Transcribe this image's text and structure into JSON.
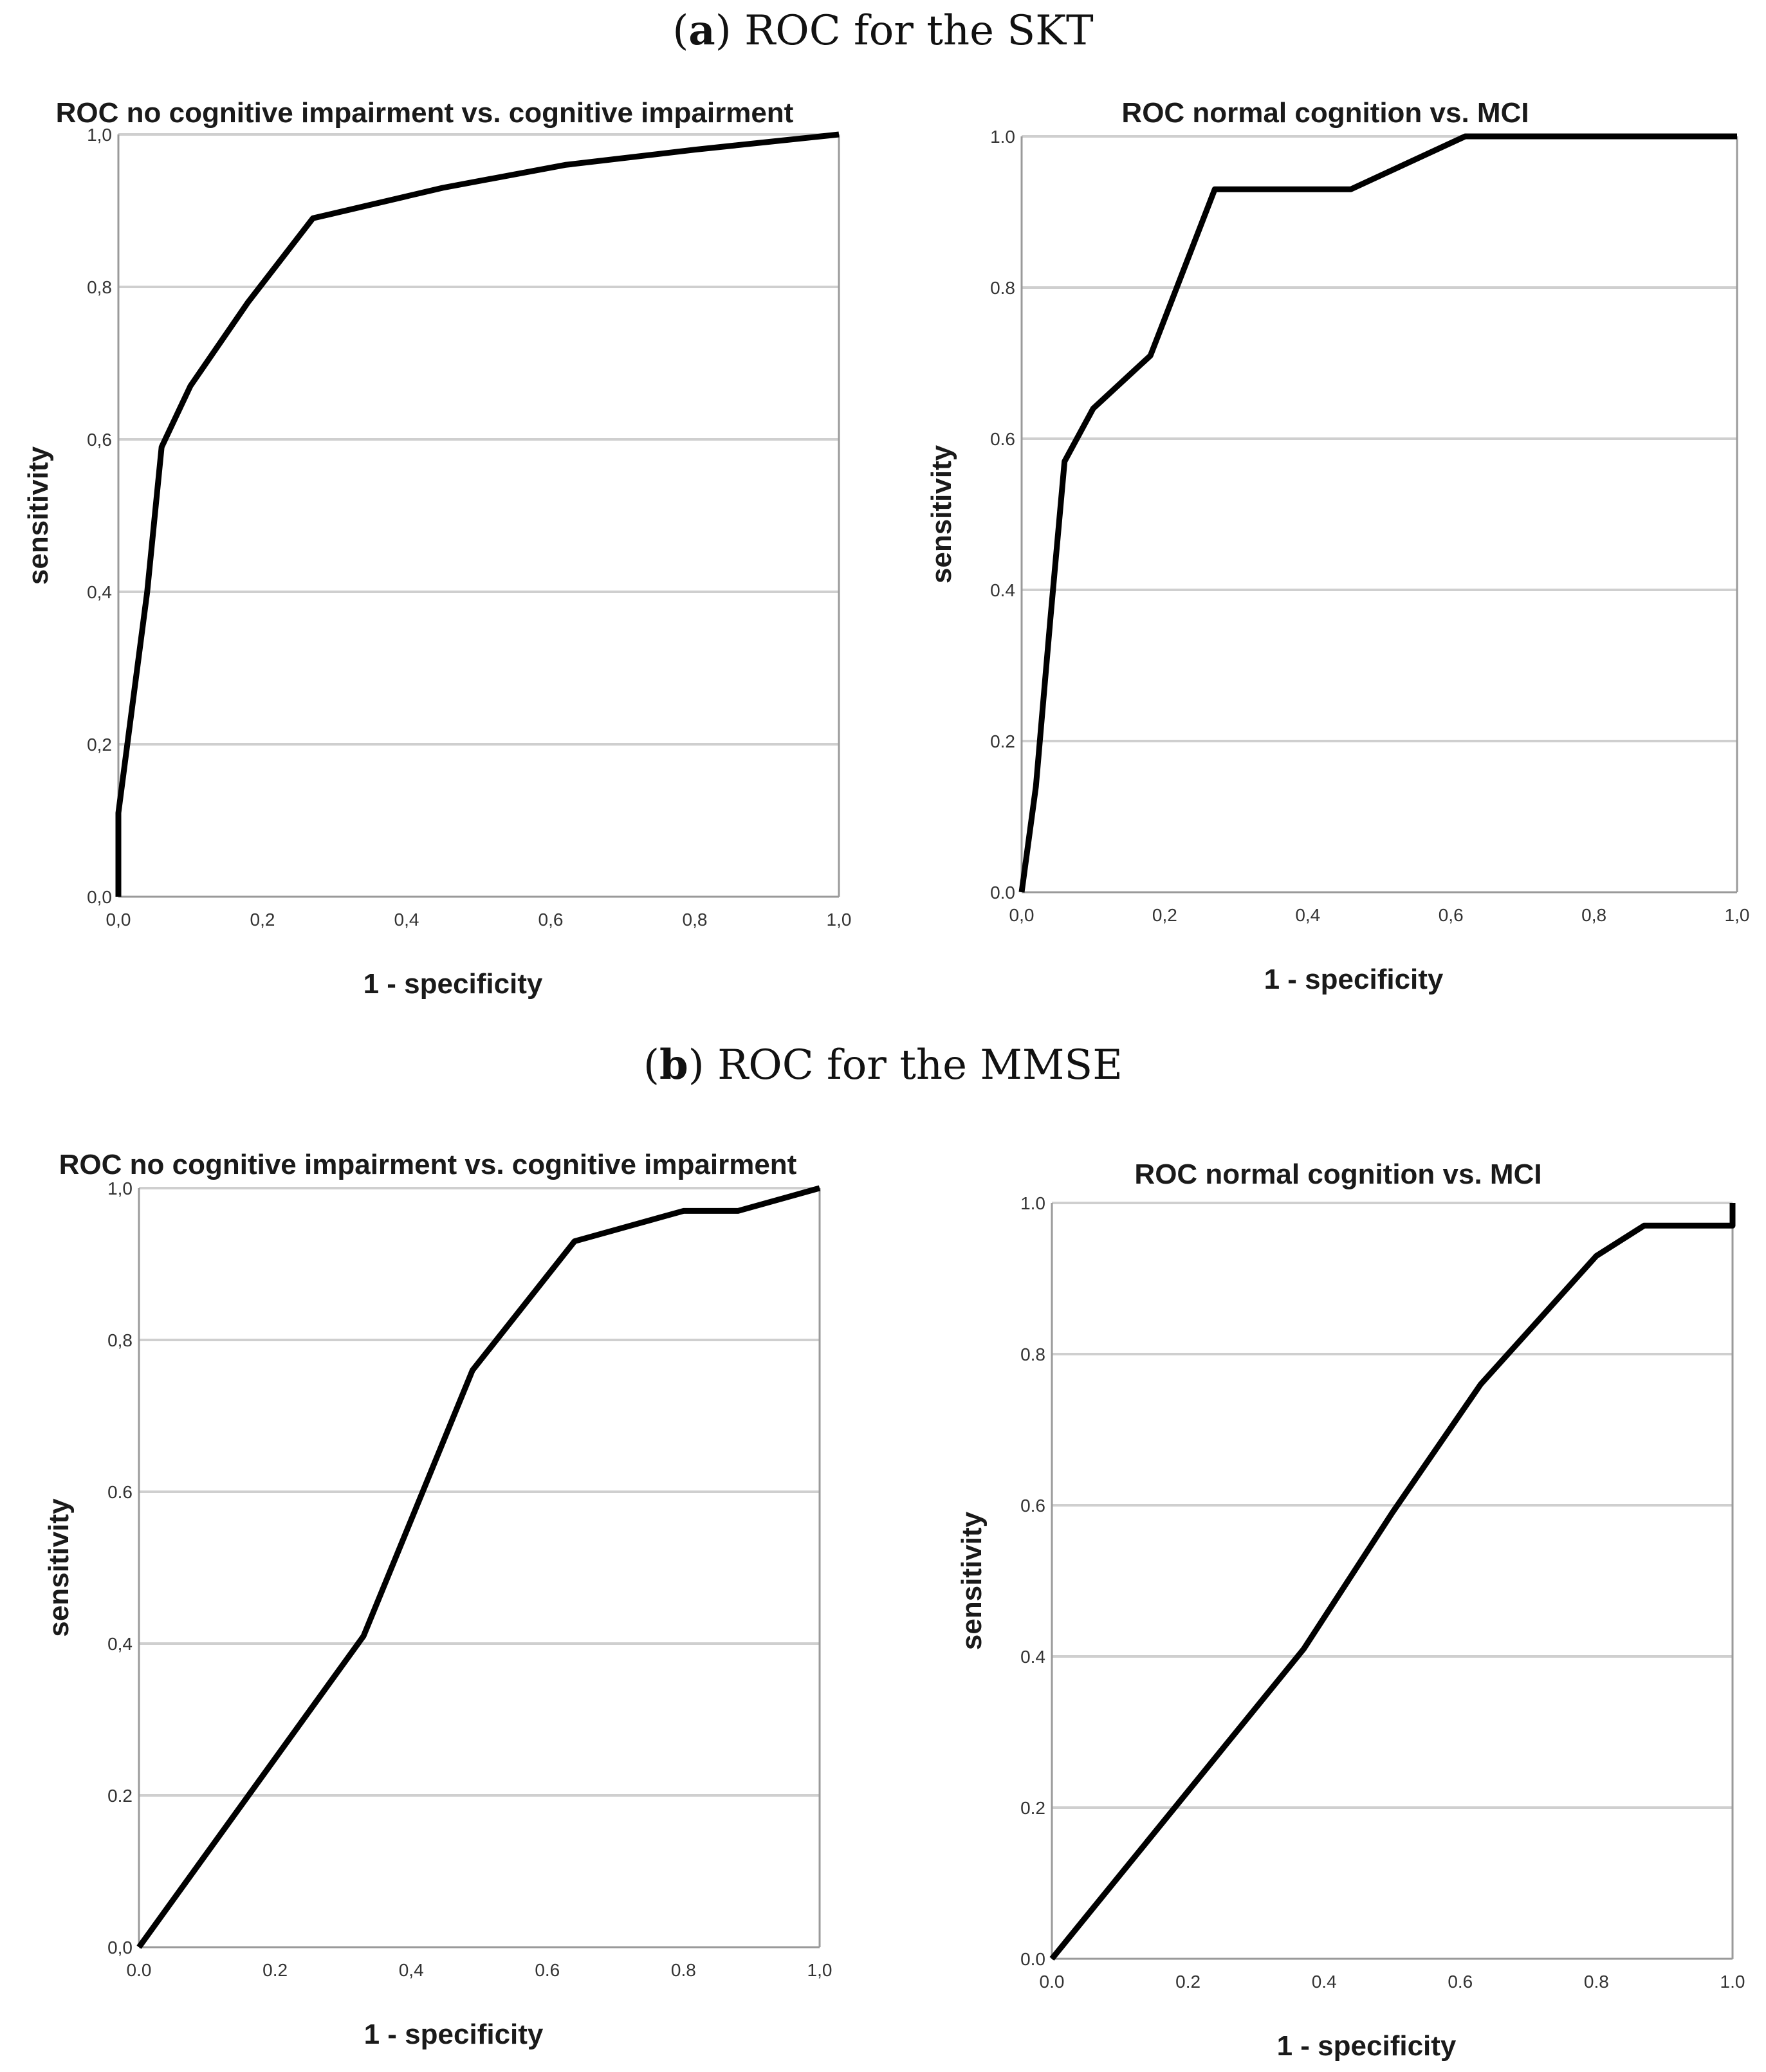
{
  "captions": [
    {
      "letter": "a",
      "text": ") ROC for the SKT"
    },
    {
      "letter": "b",
      "text": ") ROC for the MMSE"
    }
  ],
  "chart_data": [
    {
      "type": "line",
      "title": "ROC no cognitive impairment vs. cognitive impairment",
      "xlabel": "1 - specificity",
      "ylabel": "sensitivity",
      "xlim": [
        0,
        1
      ],
      "ylim": [
        0,
        1
      ],
      "xticks": [
        "0,0",
        "0,2",
        "0,4",
        "0,6",
        "0,8",
        "1,0"
      ],
      "yticks": [
        "0,0",
        "0,2",
        "0,4",
        "0,6",
        "0,8",
        "1,0"
      ],
      "grid": "horizontal",
      "series": [
        {
          "name": "ROC",
          "x": [
            0,
            0,
            0.04,
            0.06,
            0.1,
            0.18,
            0.27,
            0.45,
            0.62,
            0.8,
            1.0
          ],
          "y": [
            0,
            0.11,
            0.4,
            0.59,
            0.67,
            0.78,
            0.89,
            0.93,
            0.96,
            0.98,
            1.0
          ]
        }
      ]
    },
    {
      "type": "line",
      "title": "ROC normal cognition vs. MCI",
      "xlabel": "1 - specificity",
      "ylabel": "sensitivity",
      "xlim": [
        0,
        1
      ],
      "ylim": [
        0,
        1
      ],
      "xticks": [
        "0,0",
        "0,2",
        "0,4",
        "0,6",
        "0,8",
        "1,0"
      ],
      "yticks": [
        "0.0",
        "0.2",
        "0.4",
        "0.6",
        "0.8",
        "1.0"
      ],
      "grid": "horizontal",
      "series": [
        {
          "name": "ROC",
          "x": [
            0,
            0.02,
            0.04,
            0.06,
            0.1,
            0.18,
            0.27,
            0.46,
            0.62,
            1.0
          ],
          "y": [
            0,
            0.14,
            0.36,
            0.57,
            0.64,
            0.71,
            0.93,
            0.93,
            1.0,
            1.0
          ]
        }
      ]
    },
    {
      "type": "line",
      "title": "ROC no cognitive impairment vs. cognitive impairment",
      "xlabel": "1 - specificity",
      "ylabel": "sensitivity",
      "xlim": [
        0,
        1
      ],
      "ylim": [
        0,
        1
      ],
      "xticks": [
        "0.0",
        "0.2",
        "0,4",
        "0.6",
        "0.8",
        "1,0"
      ],
      "yticks": [
        "0,0",
        "0.2",
        "0,4",
        "0.6",
        "0,8",
        "1,0"
      ],
      "grid": "horizontal",
      "series": [
        {
          "name": "ROC",
          "x": [
            0,
            0.33,
            0.49,
            0.64,
            0.8,
            0.88,
            0.96,
            1.0
          ],
          "y": [
            0,
            0.41,
            0.76,
            0.93,
            0.97,
            0.97,
            0.99,
            1.0
          ]
        }
      ]
    },
    {
      "type": "line",
      "title": "ROC normal cognition vs. MCI",
      "xlabel": "1 - specificity",
      "ylabel": "sensitivity",
      "xlim": [
        0,
        1
      ],
      "ylim": [
        0,
        1
      ],
      "xticks": [
        "0.0",
        "0.2",
        "0.4",
        "0.6",
        "0.8",
        "1.0"
      ],
      "yticks": [
        "0.0",
        "0.2",
        "0.4",
        "0.6",
        "0.8",
        "1.0"
      ],
      "grid": "horizontal",
      "series": [
        {
          "name": "ROC",
          "x": [
            0,
            0.37,
            0.5,
            0.63,
            0.8,
            0.87,
            1.0,
            1.0
          ],
          "y": [
            0,
            0.41,
            0.59,
            0.76,
            0.93,
            0.97,
            0.97,
            1.0
          ]
        }
      ]
    }
  ]
}
